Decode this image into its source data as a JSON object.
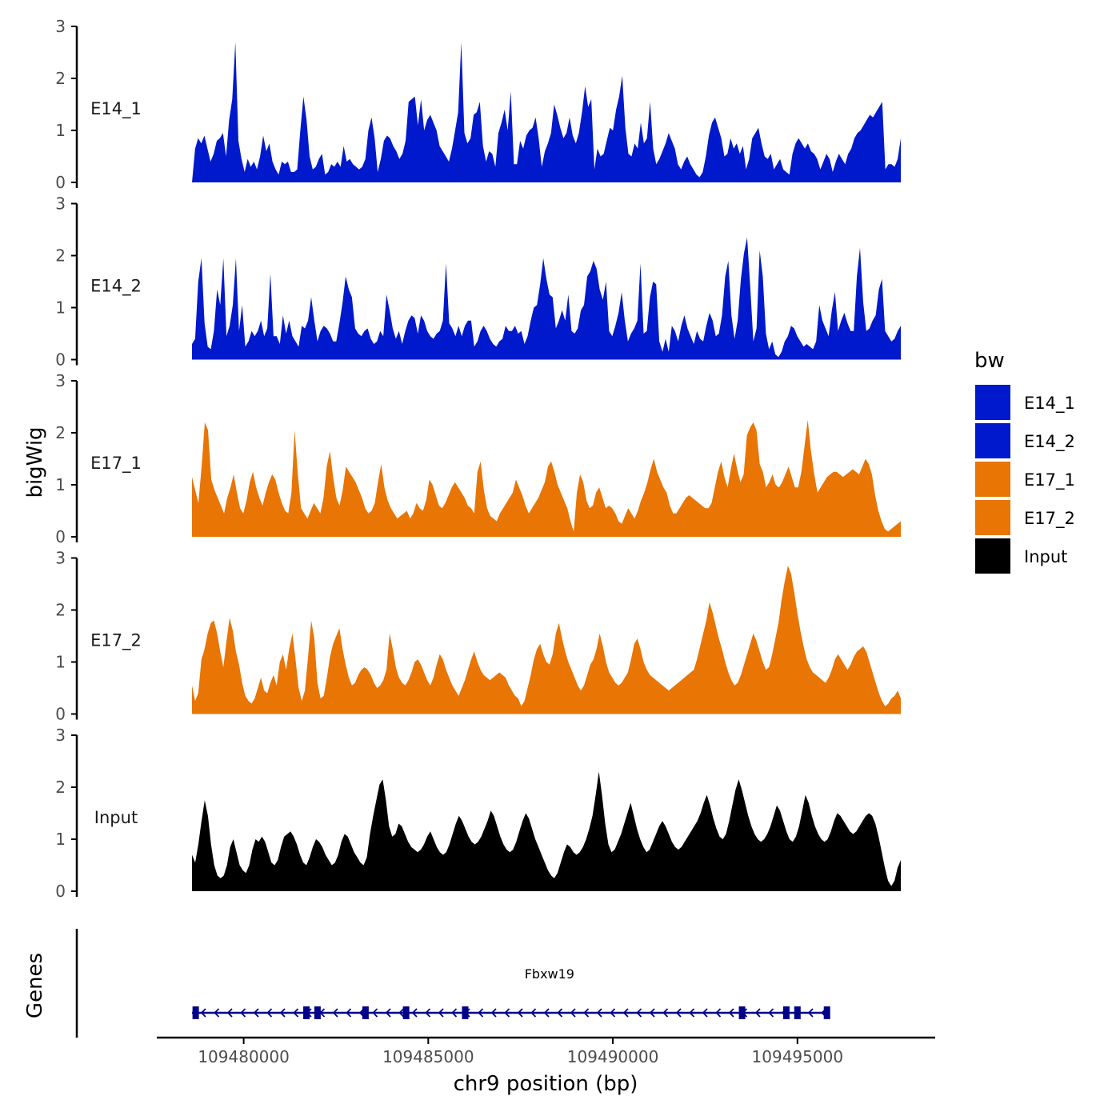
{
  "chart_data": {
    "type": "area",
    "title": "",
    "xlabel": "chr9 position (bp)",
    "ylabel": "bigWig",
    "genes_label": "Genes",
    "xlim": [
      109478000,
      109498500
    ],
    "data_x_range": [
      109478600,
      109497800
    ],
    "ylim": [
      0,
      3
    ],
    "y_ticks": [
      "0",
      "1",
      "2",
      "3"
    ],
    "x_ticks": [
      {
        "value": 109480000,
        "label": "109480000"
      },
      {
        "value": 109485000,
        "label": "109485000"
      },
      {
        "value": 109490000,
        "label": "109490000"
      },
      {
        "value": 109495000,
        "label": "109495000"
      }
    ],
    "legend": {
      "title": "bw",
      "position": "right",
      "entries": [
        {
          "label": "E14_1",
          "color": "#0019CC"
        },
        {
          "label": "E14_2",
          "color": "#0019CC"
        },
        {
          "label": "E17_1",
          "color": "#E87504"
        },
        {
          "label": "E17_2",
          "color": "#E87504"
        },
        {
          "label": "Input",
          "color": "#000000"
        }
      ]
    },
    "series": [
      {
        "name": "E14_1",
        "color": "#0019CC",
        "values": [
          0.0,
          0.65,
          0.85,
          0.75,
          0.9,
          0.65,
          0.4,
          0.55,
          0.8,
          0.85,
          0.95,
          0.5,
          1.2,
          1.6,
          2.7,
          0.8,
          0.45,
          0.2,
          0.45,
          0.3,
          0.4,
          0.25,
          0.5,
          0.9,
          0.6,
          0.75,
          0.4,
          0.25,
          0.15,
          0.4,
          0.35,
          0.4,
          0.2,
          0.2,
          0.25,
          1.0,
          1.65,
          1.2,
          0.5,
          0.25,
          0.3,
          0.45,
          0.55,
          0.15,
          0.2,
          0.35,
          0.3,
          0.4,
          0.3,
          0.7,
          0.4,
          0.45,
          0.35,
          0.3,
          0.25,
          0.3,
          0.45,
          1.0,
          1.25,
          0.85,
          0.2,
          0.45,
          0.8,
          0.9,
          0.85,
          0.7,
          0.6,
          0.45,
          0.55,
          0.8,
          1.55,
          1.6,
          1.65,
          1.1,
          1.6,
          1.0,
          1.2,
          1.3,
          1.15,
          1.0,
          0.7,
          0.6,
          0.5,
          0.4,
          0.65,
          1.0,
          1.35,
          2.7,
          0.95,
          0.75,
          0.85,
          1.3,
          1.35,
          1.55,
          0.7,
          0.4,
          0.6,
          0.55,
          0.3,
          0.95,
          1.15,
          1.4,
          1.0,
          1.75,
          0.35,
          0.35,
          0.8,
          0.65,
          0.9,
          1.0,
          1.05,
          1.25,
          0.85,
          0.3,
          0.6,
          0.75,
          0.95,
          1.5,
          1.3,
          1.05,
          0.85,
          0.95,
          1.25,
          0.9,
          0.75,
          0.95,
          1.35,
          1.85,
          1.45,
          1.6,
          0.25,
          0.65,
          0.5,
          0.55,
          0.8,
          1.05,
          1.0,
          1.4,
          1.65,
          2.05,
          1.05,
          0.55,
          0.5,
          0.75,
          0.65,
          1.15,
          0.75,
          0.85,
          1.55,
          0.65,
          0.35,
          0.45,
          0.6,
          0.75,
          0.95,
          0.8,
          0.65,
          0.35,
          0.25,
          0.4,
          0.5,
          0.35,
          0.25,
          0.15,
          0.1,
          0.2,
          0.5,
          0.9,
          1.15,
          1.25,
          1.05,
          0.85,
          0.5,
          0.55,
          0.85,
          0.65,
          0.75,
          0.55,
          0.7,
          0.25,
          0.45,
          0.85,
          0.95,
          1.05,
          0.75,
          0.5,
          0.45,
          0.55,
          0.25,
          0.35,
          0.45,
          0.25,
          0.2,
          0.15,
          0.55,
          0.75,
          0.85,
          0.75,
          0.65,
          0.75,
          0.6,
          0.55,
          0.45,
          0.25,
          0.4,
          0.55,
          0.45,
          0.2,
          0.4,
          0.55,
          0.45,
          0.35,
          0.55,
          0.65,
          0.85,
          0.95,
          1.0,
          1.1,
          1.2,
          1.3,
          1.25,
          1.35,
          1.45,
          1.55,
          0.25,
          0.35,
          0.35,
          0.3,
          0.45,
          0.85
        ]
      },
      {
        "name": "E14_2",
        "color": "#0019CC",
        "values": [
          0.3,
          0.4,
          1.5,
          1.95,
          0.7,
          0.25,
          0.2,
          0.55,
          1.35,
          1.05,
          1.95,
          0.45,
          0.65,
          1.05,
          1.95,
          0.55,
          1.05,
          0.25,
          0.35,
          0.55,
          0.45,
          0.55,
          0.75,
          0.45,
          0.6,
          1.65,
          0.45,
          0.45,
          0.3,
          0.85,
          0.5,
          0.75,
          0.45,
          0.35,
          0.25,
          0.65,
          0.6,
          0.75,
          1.2,
          0.75,
          0.35,
          0.55,
          0.65,
          0.6,
          0.5,
          0.35,
          0.35,
          0.7,
          1.1,
          1.6,
          1.35,
          1.2,
          0.6,
          0.5,
          0.45,
          0.55,
          0.6,
          0.4,
          0.3,
          0.35,
          0.55,
          0.45,
          1.25,
          0.95,
          0.6,
          0.4,
          0.55,
          0.3,
          0.55,
          0.75,
          0.85,
          0.8,
          0.5,
          0.85,
          0.75,
          0.55,
          0.45,
          0.4,
          0.5,
          0.55,
          0.75,
          1.85,
          0.7,
          0.6,
          0.45,
          0.65,
          0.45,
          0.65,
          0.75,
          0.75,
          0.25,
          0.35,
          0.55,
          0.65,
          0.55,
          0.4,
          0.3,
          0.25,
          0.35,
          0.4,
          0.65,
          0.55,
          0.55,
          0.65,
          0.5,
          0.55,
          0.3,
          0.45,
          0.75,
          1.0,
          1.05,
          1.45,
          1.95,
          1.55,
          1.25,
          1.2,
          0.6,
          0.75,
          0.95,
          0.75,
          1.25,
          0.55,
          0.5,
          0.6,
          0.95,
          1.05,
          1.6,
          1.7,
          1.9,
          1.75,
          1.35,
          1.15,
          1.5,
          0.55,
          0.45,
          0.65,
          0.9,
          1.3,
          0.75,
          0.35,
          0.5,
          0.6,
          0.75,
          1.85,
          0.5,
          0.55,
          1.2,
          1.5,
          1.45,
          0.35,
          0.15,
          0.4,
          0.15,
          0.65,
          0.55,
          0.35,
          0.65,
          0.85,
          0.6,
          0.45,
          0.3,
          0.55,
          0.4,
          0.35,
          0.65,
          0.9,
          0.75,
          0.45,
          0.5,
          0.85,
          1.6,
          1.9,
          0.85,
          0.4,
          0.75,
          1.55,
          2.05,
          2.35,
          1.4,
          0.35,
          0.6,
          2.1,
          1.6,
          0.5,
          0.2,
          0.35,
          0.1,
          0.05,
          0.15,
          0.35,
          0.45,
          0.65,
          0.6,
          0.45,
          0.35,
          0.25,
          0.3,
          0.25,
          0.2,
          0.35,
          1.05,
          0.75,
          0.6,
          0.45,
          0.95,
          1.3,
          0.55,
          0.75,
          0.9,
          0.7,
          0.55,
          0.55,
          1.6,
          2.15,
          1.1,
          0.55,
          0.6,
          0.75,
          0.85,
          1.35,
          1.55,
          0.55,
          0.45,
          0.35,
          0.4,
          0.55,
          0.65
        ]
      },
      {
        "name": "E17_1",
        "color": "#E87504",
        "values": [
          1.15,
          0.9,
          0.65,
          1.35,
          2.2,
          2.05,
          1.1,
          0.9,
          0.75,
          0.6,
          0.45,
          0.75,
          0.95,
          1.2,
          0.85,
          0.55,
          0.45,
          0.7,
          1.05,
          1.25,
          0.95,
          0.75,
          0.6,
          0.85,
          1.05,
          1.2,
          1.1,
          0.85,
          0.65,
          0.5,
          0.45,
          0.85,
          2.05,
          1.2,
          0.55,
          0.45,
          0.35,
          0.5,
          0.65,
          0.55,
          0.45,
          0.75,
          1.35,
          1.65,
          1.15,
          0.75,
          0.6,
          0.9,
          1.35,
          1.25,
          1.15,
          1.05,
          0.9,
          0.75,
          0.55,
          0.45,
          0.5,
          0.65,
          1.05,
          1.4,
          0.95,
          0.7,
          0.55,
          0.45,
          0.35,
          0.4,
          0.45,
          0.5,
          0.35,
          0.45,
          0.65,
          0.55,
          0.5,
          0.7,
          1.1,
          1.0,
          0.8,
          0.6,
          0.55,
          0.65,
          0.8,
          0.95,
          1.05,
          0.95,
          0.85,
          0.75,
          0.6,
          0.55,
          0.45,
          1.25,
          1.45,
          0.9,
          0.55,
          0.4,
          0.35,
          0.3,
          0.45,
          0.55,
          0.65,
          0.75,
          0.85,
          1.1,
          0.95,
          0.8,
          0.6,
          0.45,
          0.55,
          0.65,
          0.75,
          0.9,
          1.05,
          1.35,
          1.45,
          1.25,
          1.0,
          0.85,
          0.7,
          0.55,
          0.3,
          0.1,
          0.85,
          1.2,
          1.05,
          0.7,
          0.55,
          0.6,
          0.85,
          0.95,
          0.75,
          0.55,
          0.6,
          0.55,
          0.45,
          0.3,
          0.25,
          0.4,
          0.55,
          0.45,
          0.35,
          0.5,
          0.7,
          0.85,
          1.05,
          1.3,
          1.5,
          1.25,
          1.1,
          0.95,
          0.85,
          0.6,
          0.45,
          0.45,
          0.55,
          0.65,
          0.75,
          0.8,
          0.75,
          0.7,
          0.65,
          0.6,
          0.55,
          0.55,
          0.65,
          0.95,
          1.25,
          1.45,
          1.15,
          0.95,
          1.3,
          1.6,
          1.3,
          1.05,
          1.2,
          1.95,
          2.1,
          2.2,
          2.05,
          1.4,
          1.25,
          0.95,
          1.05,
          1.2,
          1.0,
          0.95,
          1.05,
          1.2,
          1.35,
          1.15,
          0.95,
          0.95,
          1.25,
          1.75,
          2.25,
          1.65,
          1.2,
          0.85,
          0.95,
          1.05,
          1.15,
          1.2,
          1.25,
          1.25,
          1.2,
          1.15,
          1.2,
          1.25,
          1.3,
          1.25,
          1.2,
          1.35,
          1.5,
          1.4,
          1.2,
          0.8,
          0.5,
          0.3,
          0.15,
          0.1,
          0.15,
          0.2,
          0.25,
          0.3
        ]
      },
      {
        "name": "E17_2",
        "color": "#E87504",
        "values": [
          0.55,
          0.25,
          0.4,
          1.05,
          1.25,
          1.55,
          1.75,
          1.8,
          1.55,
          1.2,
          0.9,
          1.4,
          1.85,
          1.6,
          1.2,
          0.95,
          0.6,
          0.35,
          0.25,
          0.2,
          0.3,
          0.5,
          0.7,
          0.45,
          0.4,
          0.6,
          0.75,
          0.55,
          1.0,
          1.15,
          0.85,
          1.25,
          1.55,
          1.05,
          0.5,
          0.25,
          0.45,
          1.1,
          1.8,
          1.45,
          0.6,
          0.3,
          0.35,
          0.7,
          1.1,
          1.35,
          1.5,
          1.65,
          1.25,
          0.95,
          0.7,
          0.55,
          0.6,
          0.75,
          0.85,
          0.9,
          0.85,
          0.75,
          0.6,
          0.5,
          0.55,
          0.65,
          0.85,
          1.55,
          1.25,
          0.9,
          0.7,
          0.6,
          0.55,
          0.65,
          0.8,
          1.0,
          1.05,
          0.95,
          0.8,
          0.65,
          0.55,
          0.7,
          0.95,
          1.15,
          1.05,
          0.85,
          0.7,
          0.55,
          0.45,
          0.35,
          0.5,
          0.65,
          0.85,
          1.05,
          1.2,
          1.0,
          0.85,
          0.75,
          0.7,
          0.65,
          0.7,
          0.75,
          0.8,
          0.75,
          0.7,
          0.55,
          0.45,
          0.35,
          0.3,
          0.15,
          0.25,
          0.5,
          0.75,
          1.05,
          1.25,
          1.35,
          1.15,
          1.0,
          0.95,
          1.15,
          1.55,
          1.75,
          1.45,
          1.2,
          1.0,
          0.85,
          0.7,
          0.55,
          0.45,
          0.55,
          0.75,
          0.95,
          1.05,
          1.25,
          1.55,
          1.3,
          1.0,
          0.8,
          0.7,
          0.6,
          0.55,
          0.6,
          0.7,
          0.8,
          1.05,
          1.35,
          1.45,
          1.25,
          1.0,
          0.85,
          0.75,
          0.7,
          0.65,
          0.6,
          0.55,
          0.5,
          0.45,
          0.5,
          0.55,
          0.6,
          0.65,
          0.7,
          0.75,
          0.8,
          0.85,
          1.05,
          1.3,
          1.55,
          1.8,
          2.15,
          1.95,
          1.7,
          1.45,
          1.25,
          1.0,
          0.8,
          0.65,
          0.55,
          0.6,
          0.75,
          0.95,
          1.15,
          1.35,
          1.55,
          1.4,
          1.2,
          1.0,
          0.85,
          0.9,
          1.15,
          1.45,
          1.75,
          2.2,
          2.55,
          2.85,
          2.7,
          2.35,
          1.95,
          1.6,
          1.3,
          1.05,
          0.9,
          0.8,
          0.75,
          0.7,
          0.65,
          0.6,
          0.7,
          0.85,
          1.05,
          1.15,
          1.05,
          0.95,
          0.85,
          0.95,
          1.1,
          1.2,
          1.25,
          1.3,
          1.2,
          1.0,
          0.8,
          0.6,
          0.4,
          0.25,
          0.15,
          0.2,
          0.3,
          0.35,
          0.45,
          0.3
        ]
      },
      {
        "name": "Input",
        "color": "#000000",
        "values": [
          0.7,
          0.55,
          0.9,
          1.35,
          1.75,
          1.45,
          0.9,
          0.5,
          0.3,
          0.25,
          0.3,
          0.5,
          0.85,
          1.0,
          0.75,
          0.5,
          0.4,
          0.35,
          0.5,
          0.8,
          1.0,
          0.95,
          1.05,
          0.95,
          0.75,
          0.55,
          0.5,
          0.6,
          0.85,
          1.05,
          1.1,
          1.15,
          1.05,
          0.9,
          0.7,
          0.55,
          0.5,
          0.65,
          0.85,
          1.0,
          0.95,
          0.85,
          0.7,
          0.6,
          0.5,
          0.55,
          0.7,
          0.95,
          1.1,
          1.05,
          0.9,
          0.75,
          0.65,
          0.55,
          0.5,
          0.65,
          1.1,
          1.45,
          1.75,
          2.05,
          2.15,
          1.75,
          1.25,
          1.05,
          1.1,
          1.3,
          1.25,
          1.1,
          0.95,
          0.85,
          0.8,
          0.75,
          0.8,
          0.9,
          1.05,
          1.15,
          1.0,
          0.85,
          0.75,
          0.7,
          0.75,
          0.9,
          1.1,
          1.3,
          1.45,
          1.35,
          1.2,
          1.05,
          0.95,
          0.9,
          0.95,
          1.05,
          1.2,
          1.35,
          1.55,
          1.45,
          1.25,
          1.05,
          0.9,
          0.8,
          0.75,
          0.8,
          0.95,
          1.15,
          1.35,
          1.5,
          1.4,
          1.2,
          1.0,
          0.85,
          0.7,
          0.55,
          0.4,
          0.3,
          0.25,
          0.35,
          0.55,
          0.75,
          0.9,
          0.85,
          0.75,
          0.7,
          0.75,
          0.85,
          1.0,
          1.2,
          1.45,
          1.85,
          2.3,
          1.85,
          1.3,
          0.9,
          0.75,
          0.8,
          0.95,
          1.1,
          1.3,
          1.5,
          1.7,
          1.45,
          1.2,
          1.0,
          0.85,
          0.75,
          0.8,
          0.95,
          1.1,
          1.25,
          1.35,
          1.25,
          1.1,
          0.95,
          0.85,
          0.8,
          0.85,
          0.95,
          1.05,
          1.15,
          1.25,
          1.35,
          1.5,
          1.7,
          1.85,
          1.65,
          1.4,
          1.2,
          1.05,
          1.0,
          1.1,
          1.35,
          1.65,
          1.95,
          2.15,
          1.95,
          1.7,
          1.45,
          1.25,
          1.1,
          1.0,
          0.95,
          1.0,
          1.1,
          1.25,
          1.45,
          1.65,
          1.55,
          1.35,
          1.15,
          1.0,
          0.95,
          1.05,
          1.25,
          1.55,
          1.85,
          1.7,
          1.45,
          1.25,
          1.1,
          1.0,
          0.95,
          1.0,
          1.15,
          1.35,
          1.5,
          1.45,
          1.35,
          1.25,
          1.15,
          1.1,
          1.15,
          1.25,
          1.35,
          1.45,
          1.5,
          1.45,
          1.3,
          1.05,
          0.75,
          0.45,
          0.2,
          0.1,
          0.2,
          0.45,
          0.6
        ]
      }
    ],
    "genes": [
      {
        "name": "Fbxw19",
        "start": 109478600,
        "end": 109495800,
        "strand": "-",
        "color": "#00008B",
        "exons": [
          109478700,
          109481700,
          109482000,
          109483300,
          109484400,
          109486000,
          109493500,
          109494700,
          109495000,
          109495800
        ]
      }
    ]
  }
}
